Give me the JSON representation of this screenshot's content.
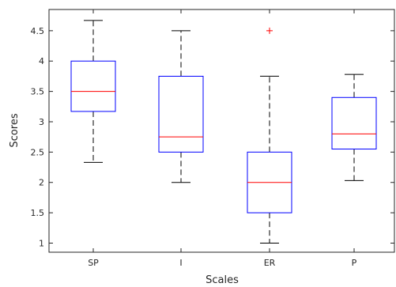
{
  "chart_data": {
    "type": "box",
    "title": "",
    "xlabel": "Scales",
    "ylabel": "Scores",
    "categories": [
      "SP",
      "I",
      "ER",
      "P"
    ],
    "ylim": [
      0.85,
      4.85
    ],
    "yticks": [
      1,
      1.5,
      2,
      2.5,
      3,
      3.5,
      4,
      4.5
    ],
    "ytick_labels": [
      "1",
      "1.5",
      "2",
      "2.5",
      "3",
      "3.5",
      "4",
      "4.5"
    ],
    "grid": false,
    "boxes": [
      {
        "category": "SP",
        "whisker_low": 2.33,
        "q1": 3.17,
        "median": 3.5,
        "q3": 4.0,
        "whisker_high": 4.67,
        "outliers": []
      },
      {
        "category": "I",
        "whisker_low": 2.0,
        "q1": 2.5,
        "median": 2.75,
        "q3": 3.75,
        "whisker_high": 4.5,
        "outliers": []
      },
      {
        "category": "ER",
        "whisker_low": 1.0,
        "q1": 1.5,
        "median": 2.0,
        "q3": 2.5,
        "whisker_high": 3.75,
        "outliers": [
          4.5
        ]
      },
      {
        "category": "P",
        "whisker_low": 2.03,
        "q1": 2.55,
        "median": 2.8,
        "q3": 3.4,
        "whisker_high": 3.78,
        "outliers": []
      }
    ],
    "colors": {
      "box": "#0000ff",
      "median": "#ff0000",
      "whisker": "#000000",
      "outlier": "#ff0000",
      "axis": "#262626"
    }
  }
}
